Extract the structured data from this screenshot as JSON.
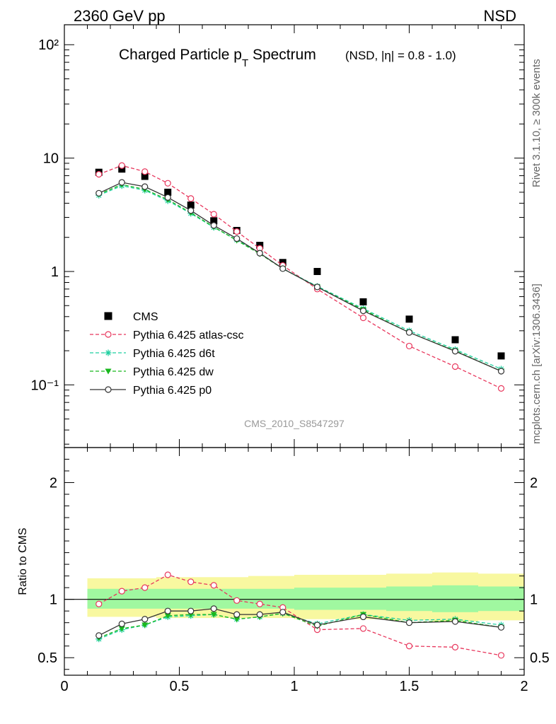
{
  "header": {
    "left": "2360 GeV pp",
    "right": "NSD"
  },
  "side": {
    "rivet": "Rivet 3.1.10, ≥ 300k events",
    "mcplots": "mcplots.cern.ch [arXiv:1306.3436]"
  },
  "colors": {
    "CMS": "#000000",
    "atlas_csc": "#e8365c",
    "d6t": "#1fcfa0",
    "dw": "#19b81e",
    "p0": "#333333",
    "band_outer": "#f8f8a0",
    "band_inner": "#a0f8a0"
  },
  "chart_data": [
    {
      "type": "scatter",
      "title_main": "Charged Particle p",
      "title_sub": "T",
      "title_rest": " Spectrum",
      "title_extra": "(NSD, |η| = 0.8 - 1.0)",
      "watermark": "CMS_2010_S8547297",
      "yscale": "log",
      "xlim": [
        0,
        2
      ],
      "ylim": [
        0.028,
        150
      ],
      "ytick_labels": [
        "10⁻¹",
        "1",
        "10",
        "10²"
      ],
      "legend_position": "lower-left",
      "x": [
        0.15,
        0.25,
        0.35,
        0.45,
        0.55,
        0.65,
        0.75,
        0.85,
        0.95,
        1.1,
        1.3,
        1.5,
        1.7,
        1.9
      ],
      "series": [
        {
          "name": "CMS",
          "key": "CMS",
          "marker": "square",
          "line": "none",
          "values": [
            7.5,
            8.0,
            6.9,
            5.0,
            3.85,
            2.8,
            2.3,
            1.7,
            1.2,
            1.0,
            0.54,
            0.38,
            0.25,
            0.18
          ]
        },
        {
          "name": "Pythia 6.425 atlas-csc",
          "key": "atlas_csc",
          "marker": "open-circle",
          "line": "dashed",
          "values": [
            7.2,
            8.6,
            7.6,
            6.0,
            4.4,
            3.2,
            2.25,
            1.6,
            1.13,
            0.7,
            0.39,
            0.22,
            0.145,
            0.093
          ]
        },
        {
          "name": "Pythia 6.425 d6t",
          "key": "d6t",
          "marker": "star",
          "line": "dashed",
          "values": [
            4.7,
            5.7,
            5.2,
            4.2,
            3.25,
            2.45,
            1.9,
            1.45,
            1.06,
            0.74,
            0.47,
            0.3,
            0.205,
            0.138
          ]
        },
        {
          "name": "Pythia 6.425 dw",
          "key": "dw",
          "marker": "triangle-down",
          "line": "dashed",
          "values": [
            4.8,
            5.85,
            5.3,
            4.3,
            3.3,
            2.47,
            1.88,
            1.43,
            1.06,
            0.73,
            0.46,
            0.29,
            0.2,
            0.132
          ]
        },
        {
          "name": "Pythia 6.425 p0",
          "key": "p0",
          "marker": "open-circle",
          "line": "solid",
          "values": [
            4.9,
            6.1,
            5.6,
            4.5,
            3.45,
            2.55,
            1.95,
            1.45,
            1.06,
            0.73,
            0.45,
            0.29,
            0.198,
            0.132
          ]
        }
      ]
    },
    {
      "type": "line",
      "ylabel": "Ratio to CMS",
      "xlim": [
        0,
        2
      ],
      "ylim": [
        0.35,
        2.3
      ],
      "xtick_labels": [
        "0",
        "0.5",
        "1",
        "1.5",
        "2"
      ],
      "ytick_labels": [
        "0.5",
        "1",
        "2"
      ],
      "bands": {
        "edges": [
          0.1,
          0.2,
          0.3,
          0.4,
          0.5,
          0.6,
          0.7,
          0.8,
          0.9,
          1.0,
          1.2,
          1.4,
          1.6,
          1.8,
          2.0
        ],
        "outer_low": [
          0.85,
          0.85,
          0.85,
          0.84,
          0.84,
          0.84,
          0.84,
          0.84,
          0.84,
          0.83,
          0.83,
          0.82,
          0.81,
          0.82
        ],
        "outer_high": [
          1.18,
          1.18,
          1.18,
          1.19,
          1.19,
          1.19,
          1.19,
          1.2,
          1.2,
          1.21,
          1.21,
          1.22,
          1.23,
          1.22
        ],
        "inner_low": [
          0.92,
          0.92,
          0.92,
          0.92,
          0.92,
          0.92,
          0.92,
          0.92,
          0.92,
          0.91,
          0.91,
          0.9,
          0.89,
          0.9
        ],
        "inner_high": [
          1.09,
          1.09,
          1.09,
          1.09,
          1.09,
          1.09,
          1.09,
          1.09,
          1.09,
          1.1,
          1.1,
          1.11,
          1.12,
          1.11
        ]
      },
      "x": [
        0.15,
        0.25,
        0.35,
        0.45,
        0.55,
        0.65,
        0.75,
        0.85,
        0.95,
        1.1,
        1.3,
        1.5,
        1.7,
        1.9
      ],
      "series": [
        {
          "name": "Pythia 6.425 atlas-csc",
          "key": "atlas_csc",
          "marker": "open-circle",
          "line": "dashed",
          "values": [
            0.96,
            1.07,
            1.1,
            1.21,
            1.15,
            1.12,
            0.99,
            0.96,
            0.93,
            0.74,
            0.75,
            0.6,
            0.59,
            0.52
          ]
        },
        {
          "name": "Pythia 6.425 d6t",
          "key": "d6t",
          "marker": "star",
          "line": "dashed",
          "values": [
            0.66,
            0.74,
            0.78,
            0.85,
            0.86,
            0.87,
            0.83,
            0.85,
            0.88,
            0.79,
            0.87,
            0.82,
            0.83,
            0.78
          ]
        },
        {
          "name": "Pythia 6.425 dw",
          "key": "dw",
          "marker": "triangle-down",
          "line": "dashed",
          "values": [
            0.67,
            0.75,
            0.78,
            0.86,
            0.87,
            0.87,
            0.83,
            0.85,
            0.88,
            0.77,
            0.87,
            0.8,
            0.82,
            0.76
          ]
        },
        {
          "name": "Pythia 6.425 p0",
          "key": "p0",
          "marker": "open-circle",
          "line": "solid",
          "values": [
            0.69,
            0.79,
            0.83,
            0.9,
            0.9,
            0.92,
            0.87,
            0.87,
            0.89,
            0.78,
            0.85,
            0.8,
            0.81,
            0.76
          ]
        }
      ]
    }
  ]
}
